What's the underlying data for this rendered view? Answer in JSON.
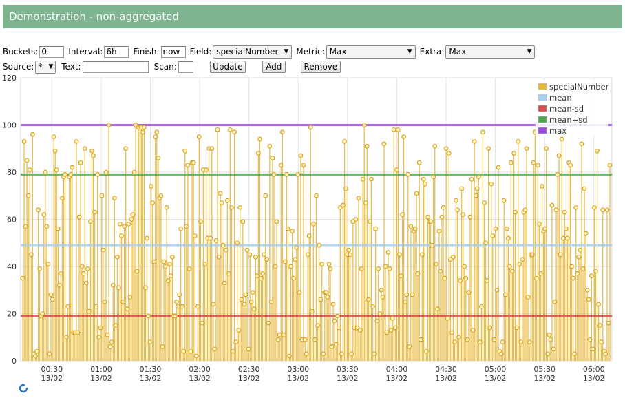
{
  "header": {
    "title": "Demonstration - non-aggregated"
  },
  "controls": {
    "buckets": {
      "label": "Buckets:",
      "value": "0"
    },
    "interval": {
      "label": "Interval:",
      "value": "6h"
    },
    "finish": {
      "label": "Finish:",
      "value": "now"
    },
    "field": {
      "label": "Field:",
      "value": "specialNumber"
    },
    "metric": {
      "label": "Metric:",
      "value": "Max"
    },
    "extra": {
      "label": "Extra:",
      "value": "Max"
    },
    "source": {
      "label": "Source:",
      "value": "*"
    },
    "text": {
      "label": "Text:",
      "value": ""
    },
    "scan": {
      "label": "Scan:",
      "value": ""
    },
    "update_label": "Update",
    "add_label": "Add",
    "remove_label": "Remove"
  },
  "icons": {
    "refresh": "refresh-icon"
  },
  "chart_data": {
    "type": "bar",
    "title": "",
    "xlabel": "",
    "ylabel": "",
    "ylim": [
      0,
      120
    ],
    "yticks": [
      0,
      20,
      40,
      60,
      80,
      100,
      120
    ],
    "xticks": [
      {
        "top": "00:30",
        "bottom": "13/02"
      },
      {
        "top": "01:00",
        "bottom": "13/02"
      },
      {
        "top": "01:30",
        "bottom": "13/02"
      },
      {
        "top": "02:00",
        "bottom": "13/02"
      },
      {
        "top": "02:30",
        "bottom": "13/02"
      },
      {
        "top": "03:00",
        "bottom": "13/02"
      },
      {
        "top": "03:30",
        "bottom": "13/02"
      },
      {
        "top": "04:00",
        "bottom": "13/02"
      },
      {
        "top": "04:30",
        "bottom": "13/02"
      },
      {
        "top": "05:00",
        "bottom": "13/02"
      },
      {
        "top": "05:30",
        "bottom": "13/02"
      },
      {
        "top": "06:00",
        "bottom": "13/02"
      }
    ],
    "xrange_minutes": [
      11,
      371
    ],
    "xtick_minutes": [
      30,
      60,
      90,
      120,
      150,
      180,
      210,
      240,
      270,
      300,
      330,
      360
    ],
    "grid": true,
    "legend_position": "top-right",
    "series": [
      {
        "name": "specialNumber",
        "color": "#e8b83a",
        "kind": "lollipop",
        "values": [
          35,
          93,
          57,
          85,
          70,
          81,
          45,
          96,
          3,
          2,
          4,
          64,
          39,
          19,
          20,
          62,
          80,
          57,
          41,
          3,
          28,
          26,
          95,
          89,
          81,
          56,
          32,
          37,
          69,
          78,
          79,
          10,
          23,
          78,
          79,
          82,
          12,
          12,
          93,
          12,
          61,
          84,
          40,
          37,
          90,
          33,
          39,
          21,
          59,
          89,
          87,
          63,
          23,
          79,
          10,
          14,
          70,
          47,
          25,
          80,
          11,
          100,
          6,
          8,
          32,
          69,
          15,
          44,
          31,
          58,
          53,
          25,
          57,
          90,
          22,
          58,
          27,
          60,
          62,
          80,
          100,
          38,
          99,
          99,
          99,
          97,
          99,
          31,
          52,
          19,
          8,
          74,
          67,
          42,
          95,
          97,
          86,
          69,
          70,
          6,
          42,
          40,
          65,
          34,
          41,
          36,
          44,
          19,
          19,
          25,
          23,
          28,
          56,
          23,
          4,
          89,
          57,
          83,
          39,
          4,
          84,
          84,
          53,
          2,
          23,
          95,
          59,
          16,
          81,
          41,
          81,
          52,
          90,
          52,
          90,
          24,
          5,
          51,
          98,
          44,
          71,
          67,
          49,
          33,
          47,
          68,
          37,
          98,
          65,
          4,
          97,
          8,
          50,
          13,
          65,
          26,
          59,
          24,
          28,
          47,
          5,
          45,
          25,
          29,
          22,
          44,
          36,
          88,
          94,
          35,
          37,
          45,
          70,
          43,
          16,
          91,
          25,
          86,
          79,
          40,
          59,
          9,
          11,
          83,
          97,
          11,
          42,
          79,
          56,
          2,
          40,
          55,
          35,
          43,
          48,
          79,
          29,
          87,
          9,
          83,
          9,
          3,
          45,
          53,
          99,
          21,
          58,
          9,
          70,
          15,
          49,
          26,
          41,
          3,
          29,
          29,
          27,
          41,
          39,
          6,
          24,
          17,
          7,
          19,
          14,
          65,
          3,
          66,
          93,
          73,
          45,
          47,
          45,
          3,
          59,
          14,
          60,
          14,
          69,
          13,
          39,
          77,
          100,
          67,
          91,
          26,
          59,
          77,
          23,
          3,
          56,
          17,
          39,
          20,
          30,
          27,
          92,
          40,
          12,
          46,
          39,
          13,
          18,
          98,
          14,
          81,
          98,
          45,
          36,
          62,
          95,
          25,
          28,
          79,
          6,
          57,
          28,
          55,
          56,
          71,
          37,
          84,
          9,
          45,
          77,
          75,
          4,
          61,
          59,
          59,
          49,
          78,
          91,
          41,
          22,
          55,
          38,
          61,
          65,
          35,
          90,
          18,
          88,
          43,
          12,
          44,
          8,
          68,
          64,
          10,
          34,
          73,
          62,
          40,
          35,
          9,
          29,
          61,
          77,
          13,
          93,
          70,
          73,
          78,
          8,
          23,
          97,
          67,
          50,
          34,
          90,
          14,
          75,
          53,
          9,
          56,
          30,
          82,
          4,
          3,
          8,
          68,
          28,
          56,
          52,
          40,
          84,
          38,
          88,
          63,
          14,
          93,
          41,
          8,
          43,
          63,
          64,
          90,
          27,
          8,
          45,
          45,
          84,
          97,
          35,
          83,
          58,
          37,
          74,
          55,
          56,
          90,
          3,
          11,
          9,
          66,
          5,
          25,
          64,
          79,
          87,
          45,
          94,
          52,
          63,
          56,
          52,
          84,
          83,
          40,
          35,
          3,
          65,
          37,
          44,
          47,
          92,
          39,
          73,
          54,
          30,
          26,
          9,
          36,
          5,
          65,
          38,
          89,
          24,
          15,
          8,
          64,
          4,
          3,
          64,
          16,
          83
        ]
      },
      {
        "name": "mean",
        "color": "#a8d0f0",
        "kind": "hline",
        "value": 49
      },
      {
        "name": "mean-sd",
        "color": "#d44d4d",
        "kind": "hline",
        "value": 19
      },
      {
        "name": "mean+sd",
        "color": "#4da64d",
        "kind": "hline",
        "value": 79
      },
      {
        "name": "max",
        "color": "#9a4ddc",
        "kind": "hline",
        "value": 100
      }
    ]
  }
}
